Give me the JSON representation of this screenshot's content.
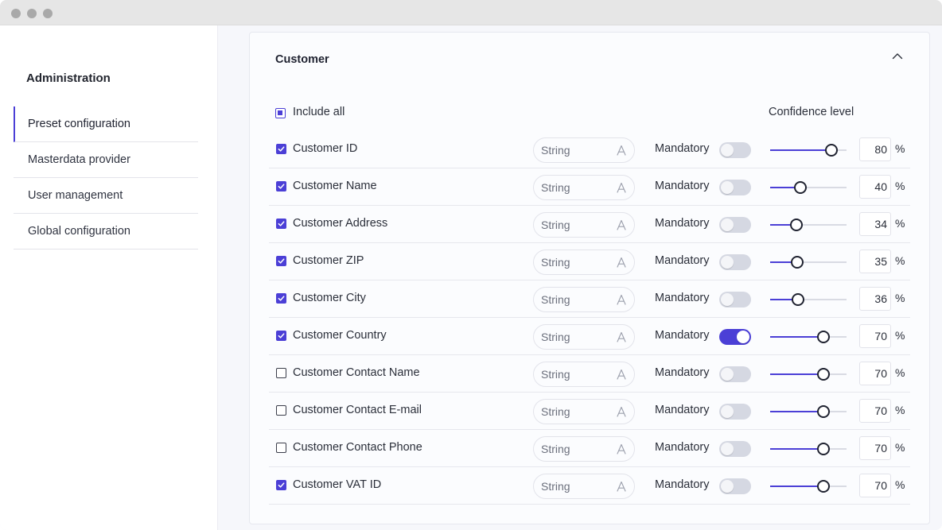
{
  "window": {
    "title_bar_dots": [
      "close",
      "minimize",
      "maximize"
    ]
  },
  "sidebar": {
    "title": "Administration",
    "items": [
      {
        "label": "Preset configuration",
        "active": true
      },
      {
        "label": "Masterdata provider",
        "active": false
      },
      {
        "label": "User management",
        "active": false
      },
      {
        "label": "Global configuration",
        "active": false
      }
    ]
  },
  "section": {
    "title": "Customer",
    "include_all_label": "Include all",
    "confidence_header": "Confidence level",
    "mandatory_label": "Mandatory",
    "percent_symbol": "%",
    "fields": [
      {
        "label": "Customer ID",
        "included": true,
        "type": "String",
        "mandatory": false,
        "confidence": 80
      },
      {
        "label": "Customer Name",
        "included": true,
        "type": "String",
        "mandatory": false,
        "confidence": 40
      },
      {
        "label": "Customer Address",
        "included": true,
        "type": "String",
        "mandatory": false,
        "confidence": 34
      },
      {
        "label": "Customer ZIP",
        "included": true,
        "type": "String",
        "mandatory": false,
        "confidence": 35
      },
      {
        "label": "Customer City",
        "included": true,
        "type": "String",
        "mandatory": false,
        "confidence": 36
      },
      {
        "label": "Customer Country",
        "included": true,
        "type": "String",
        "mandatory": true,
        "confidence": 70
      },
      {
        "label": "Customer Contact Name",
        "included": false,
        "type": "String",
        "mandatory": false,
        "confidence": 70
      },
      {
        "label": "Customer Contact E-mail",
        "included": false,
        "type": "String",
        "mandatory": false,
        "confidence": 70
      },
      {
        "label": "Customer Contact Phone",
        "included": false,
        "type": "String",
        "mandatory": false,
        "confidence": 70
      },
      {
        "label": "Customer VAT ID",
        "included": true,
        "type": "String",
        "mandatory": false,
        "confidence": 70
      }
    ]
  },
  "colors": {
    "accent": "#4b3fd6",
    "toggle_off": "#d5d8e2",
    "border": "#e6e7ed"
  }
}
